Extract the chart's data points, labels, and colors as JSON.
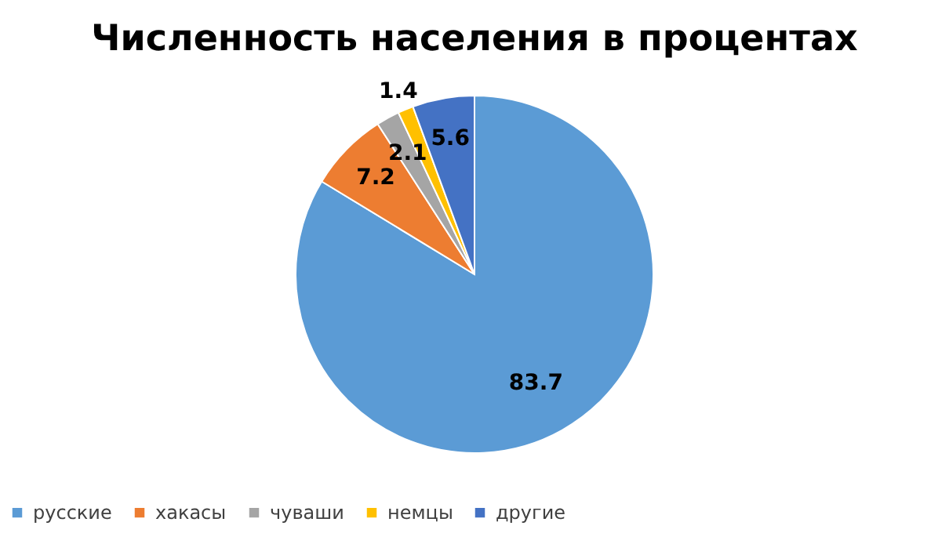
{
  "chart_data": {
    "type": "pie",
    "title": "Численность населения в процентах",
    "categories": [
      "русские",
      "хакасы",
      "чуваши",
      "немцы",
      "другие"
    ],
    "values": [
      83.7,
      7.2,
      2.1,
      1.4,
      5.6
    ],
    "colors": [
      "#5b9bd5",
      "#ed7d31",
      "#a5a5a5",
      "#ffc000",
      "#4472c4"
    ],
    "data_labels": true,
    "legend": "bottom"
  }
}
